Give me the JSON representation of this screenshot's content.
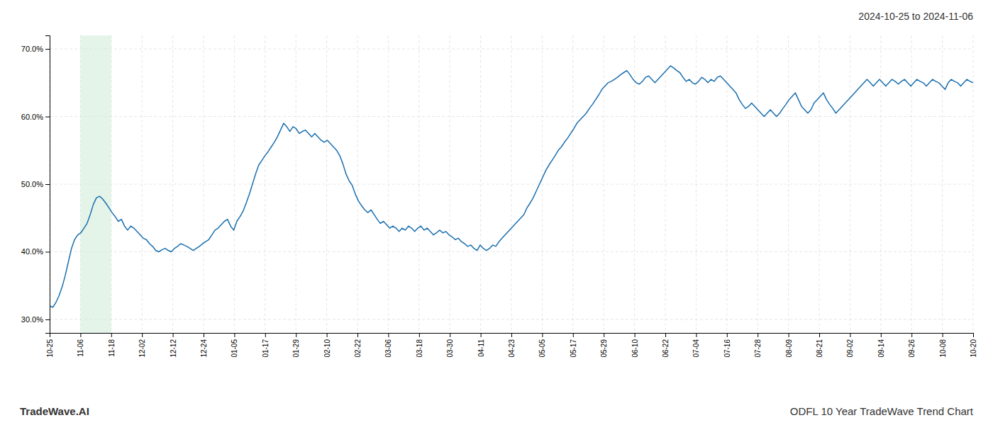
{
  "chart_data": {
    "type": "line",
    "title": "2024-10-25 to 2024-11-06",
    "annotations": [
      "TradeWave.AI",
      "ODFL 10 Year TradeWave Trend Chart"
    ],
    "color": "#1a6faf",
    "grid": true,
    "xlim": [
      0,
      30
    ],
    "xticks": [
      {
        "value": 0,
        "label": "10-25"
      },
      {
        "value": 1,
        "label": "11-06"
      },
      {
        "value": 2,
        "label": "11-18"
      },
      {
        "value": 3,
        "label": "12-02"
      },
      {
        "value": 4,
        "label": "12-12"
      },
      {
        "value": 5,
        "label": "12-24"
      },
      {
        "value": 6,
        "label": "01-05"
      },
      {
        "value": 7,
        "label": "01-17"
      },
      {
        "value": 8,
        "label": "01-29"
      },
      {
        "value": 9,
        "label": "02-10"
      },
      {
        "value": 10,
        "label": "02-22"
      },
      {
        "value": 11,
        "label": "03-06"
      },
      {
        "value": 12,
        "label": "03-18"
      },
      {
        "value": 13,
        "label": "03-30"
      },
      {
        "value": 14,
        "label": "04-11"
      },
      {
        "value": 15,
        "label": "04-23"
      },
      {
        "value": 16,
        "label": "05-05"
      },
      {
        "value": 17,
        "label": "05-17"
      },
      {
        "value": 18,
        "label": "05-29"
      },
      {
        "value": 19,
        "label": "06-10"
      },
      {
        "value": 20,
        "label": "06-22"
      },
      {
        "value": 21,
        "label": "07-04"
      },
      {
        "value": 22,
        "label": "07-16"
      },
      {
        "value": 23,
        "label": "07-28"
      },
      {
        "value": 24,
        "label": "08-09"
      },
      {
        "value": 25,
        "label": "08-21"
      },
      {
        "value": 26,
        "label": "09-02"
      },
      {
        "value": 27,
        "label": "09-14"
      },
      {
        "value": 28,
        "label": "09-26"
      },
      {
        "value": 29,
        "label": "10-08"
      },
      {
        "value": 30,
        "label": "10-20"
      }
    ],
    "ylim": [
      28.0,
      72.0
    ],
    "yticks": [
      {
        "value": 30.0,
        "label": "30.0%"
      },
      {
        "value": 40.0,
        "label": "40.0%"
      },
      {
        "value": 50.0,
        "label": "50.0%"
      },
      {
        "value": 60.0,
        "label": "60.0%"
      },
      {
        "value": 70.0,
        "label": "70.0%"
      }
    ],
    "shaded": {
      "x": [
        1,
        2
      ],
      "color": "#d4edda"
    },
    "values": [
      32.0,
      31.8,
      32.5,
      33.5,
      34.8,
      36.5,
      38.5,
      40.5,
      41.8,
      42.5,
      42.8,
      43.5,
      44.2,
      45.5,
      47.0,
      48.0,
      48.2,
      47.8,
      47.2,
      46.5,
      45.8,
      45.2,
      44.5,
      44.8,
      43.8,
      43.2,
      43.8,
      43.5,
      43.0,
      42.5,
      42.0,
      41.8,
      41.2,
      40.8,
      40.2,
      40.0,
      40.3,
      40.5,
      40.2,
      40.0,
      40.5,
      40.8,
      41.2,
      41.0,
      40.8,
      40.5,
      40.2,
      40.5,
      40.8,
      41.2,
      41.5,
      41.8,
      42.5,
      43.2,
      43.5,
      44.0,
      44.5,
      44.8,
      43.8,
      43.2,
      44.5,
      45.2,
      46.0,
      47.2,
      48.5,
      50.0,
      51.5,
      52.8,
      53.5,
      54.2,
      54.8,
      55.5,
      56.2,
      57.0,
      58.0,
      59.0,
      58.5,
      57.8,
      58.5,
      58.2,
      57.5,
      57.8,
      58.0,
      57.5,
      57.0,
      57.5,
      57.0,
      56.5,
      56.2,
      56.5,
      56.0,
      55.5,
      55.0,
      54.2,
      53.0,
      51.5,
      50.5,
      49.8,
      48.5,
      47.5,
      46.8,
      46.2,
      45.8,
      46.2,
      45.5,
      44.8,
      44.2,
      44.5,
      44.0,
      43.5,
      43.8,
      43.5,
      43.0,
      43.5,
      43.2,
      43.8,
      43.5,
      43.0,
      43.5,
      43.8,
      43.2,
      43.5,
      43.0,
      42.5,
      42.8,
      43.2,
      42.8,
      43.0,
      42.5,
      42.2,
      41.8,
      42.0,
      41.5,
      41.2,
      40.8,
      41.0,
      40.5,
      40.2,
      41.0,
      40.5,
      40.2,
      40.5,
      41.0,
      40.8,
      41.5,
      42.0,
      42.5,
      43.0,
      43.5,
      44.0,
      44.5,
      45.0,
      45.5,
      46.5,
      47.2,
      48.0,
      49.0,
      50.0,
      51.0,
      52.0,
      52.8,
      53.5,
      54.2,
      55.0,
      55.5,
      56.2,
      56.8,
      57.5,
      58.2,
      59.0,
      59.5,
      60.0,
      60.5,
      61.2,
      61.8,
      62.5,
      63.2,
      64.0,
      64.5,
      65.0,
      65.2,
      65.5,
      65.8,
      66.2,
      66.5,
      66.8,
      66.2,
      65.5,
      65.0,
      64.8,
      65.2,
      65.8,
      66.0,
      65.5,
      65.0,
      65.5,
      66.0,
      66.5,
      67.0,
      67.5,
      67.2,
      66.8,
      66.5,
      65.8,
      65.2,
      65.5,
      65.0,
      64.8,
      65.2,
      65.8,
      65.5,
      65.0,
      65.5,
      65.2,
      65.8,
      66.0,
      65.5,
      65.0,
      64.5,
      64.0,
      63.5,
      62.5,
      61.8,
      61.2,
      61.5,
      62.0,
      61.5,
      61.0,
      60.5,
      60.0,
      60.5,
      61.0,
      60.5,
      60.0,
      60.5,
      61.2,
      61.8,
      62.5,
      63.0,
      63.5,
      62.5,
      61.5,
      61.0,
      60.5,
      61.0,
      62.0,
      62.5,
      63.0,
      63.5,
      62.5,
      61.8,
      61.2,
      60.5,
      61.0,
      61.5,
      62.0,
      62.5,
      63.0,
      63.5,
      64.0,
      64.5,
      65.0,
      65.5,
      65.0,
      64.5,
      65.0,
      65.5,
      65.0,
      64.5,
      65.0,
      65.5,
      65.2,
      64.8,
      65.2,
      65.5,
      65.0,
      64.5,
      65.0,
      65.5,
      65.2,
      65.0,
      64.5,
      65.0,
      65.5,
      65.2,
      65.0,
      64.5,
      64.0,
      65.0,
      65.5,
      65.2,
      65.0,
      64.5,
      65.0,
      65.5,
      65.2,
      65.0
    ]
  }
}
